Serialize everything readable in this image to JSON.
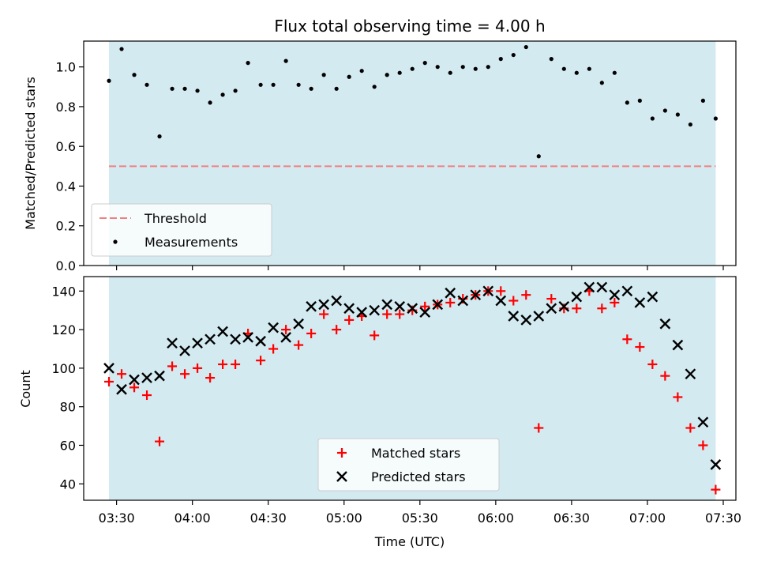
{
  "chart_data": [
    {
      "type": "scatter",
      "title": "Flux total observing time = 4.00 h",
      "xlabel": "",
      "ylabel": "Matched/Predicted stars",
      "ylim": [
        0,
        1.13
      ],
      "yticks": [
        "0.0",
        "0.2",
        "0.4",
        "0.6",
        "0.8",
        "1.0"
      ],
      "xlim": [
        "03:17",
        "07:35"
      ],
      "shaded_span": [
        "03:27",
        "07:27"
      ],
      "shade_color": "#d3eaf1",
      "threshold": {
        "name": "Threshold",
        "value": 0.5,
        "color": "#f08080",
        "style": "dashed"
      },
      "series": [
        {
          "name": "Measurements",
          "color": "#000000",
          "marker": "dot",
          "x": [
            "03:27",
            "03:32",
            "03:37",
            "03:42",
            "03:47",
            "03:52",
            "03:57",
            "04:02",
            "04:07",
            "04:12",
            "04:17",
            "04:22",
            "04:27",
            "04:32",
            "04:37",
            "04:42",
            "04:47",
            "04:52",
            "04:57",
            "05:02",
            "05:07",
            "05:12",
            "05:17",
            "05:22",
            "05:27",
            "05:32",
            "05:37",
            "05:42",
            "05:47",
            "05:52",
            "05:57",
            "06:02",
            "06:07",
            "06:12",
            "06:17",
            "06:22",
            "06:27",
            "06:32",
            "06:37",
            "06:42",
            "06:47",
            "06:52",
            "06:57",
            "07:02",
            "07:07",
            "07:12",
            "07:17",
            "07:22",
            "07:27"
          ],
          "y": [
            0.93,
            1.09,
            0.96,
            0.91,
            0.65,
            0.89,
            0.89,
            0.88,
            0.82,
            0.86,
            0.88,
            1.02,
            0.91,
            0.91,
            1.03,
            0.91,
            0.89,
            0.96,
            0.89,
            0.95,
            0.98,
            0.9,
            0.96,
            0.97,
            0.99,
            1.02,
            1.0,
            0.97,
            1.0,
            0.99,
            1.0,
            1.04,
            1.06,
            1.1,
            0.55,
            1.04,
            0.99,
            0.97,
            0.99,
            0.92,
            0.97,
            0.82,
            0.83,
            0.74,
            0.78,
            0.76,
            0.71,
            0.83,
            0.74
          ]
        }
      ],
      "legend": {
        "placement": "lower-left"
      }
    },
    {
      "type": "scatter",
      "title": "",
      "xlabel": "Time (UTC)",
      "ylabel": "Count",
      "ylim": [
        31.5,
        147.5
      ],
      "yticks": [
        "40",
        "60",
        "80",
        "100",
        "120",
        "140"
      ],
      "xlim": [
        "03:17",
        "07:35"
      ],
      "xticks": [
        "03:30",
        "04:00",
        "04:30",
        "05:00",
        "05:30",
        "06:00",
        "06:30",
        "07:00",
        "07:30"
      ],
      "shaded_span": [
        "03:27",
        "07:27"
      ],
      "shade_color": "#d3eaf1",
      "series": [
        {
          "name": "Matched stars",
          "color": "#ff0000",
          "marker": "plus",
          "x": [
            "03:27",
            "03:32",
            "03:37",
            "03:42",
            "03:47",
            "03:52",
            "03:57",
            "04:02",
            "04:07",
            "04:12",
            "04:17",
            "04:22",
            "04:27",
            "04:32",
            "04:37",
            "04:42",
            "04:47",
            "04:52",
            "04:57",
            "05:02",
            "05:07",
            "05:12",
            "05:17",
            "05:22",
            "05:27",
            "05:32",
            "05:37",
            "05:42",
            "05:47",
            "05:52",
            "05:57",
            "06:02",
            "06:07",
            "06:12",
            "06:17",
            "06:22",
            "06:27",
            "06:32",
            "06:37",
            "06:42",
            "06:47",
            "06:52",
            "06:57",
            "07:02",
            "07:07",
            "07:12",
            "07:17",
            "07:22",
            "07:27"
          ],
          "y": [
            93,
            97,
            90,
            86,
            62,
            101,
            97,
            100,
            95,
            102,
            102,
            118,
            104,
            110,
            120,
            112,
            118,
            128,
            120,
            125,
            127,
            117,
            128,
            128,
            130,
            132,
            133,
            134,
            136,
            138,
            140,
            140,
            135,
            138,
            69,
            136,
            131,
            131,
            140,
            131,
            134,
            115,
            111,
            102,
            96,
            85,
            69,
            60,
            37
          ]
        },
        {
          "name": "Predicted stars",
          "color": "#000000",
          "marker": "x",
          "x": [
            "03:27",
            "03:32",
            "03:37",
            "03:42",
            "03:47",
            "03:52",
            "03:57",
            "04:02",
            "04:07",
            "04:12",
            "04:17",
            "04:22",
            "04:27",
            "04:32",
            "04:37",
            "04:42",
            "04:47",
            "04:52",
            "04:57",
            "05:02",
            "05:07",
            "05:12",
            "05:17",
            "05:22",
            "05:27",
            "05:32",
            "05:37",
            "05:42",
            "05:47",
            "05:52",
            "05:57",
            "06:02",
            "06:07",
            "06:12",
            "06:17",
            "06:22",
            "06:27",
            "06:32",
            "06:37",
            "06:42",
            "06:47",
            "06:52",
            "06:57",
            "07:02",
            "07:07",
            "07:12",
            "07:17",
            "07:22",
            "07:27"
          ],
          "y": [
            100,
            89,
            94,
            95,
            96,
            113,
            109,
            113,
            115,
            119,
            115,
            116,
            114,
            121,
            116,
            123,
            132,
            133,
            135,
            131,
            129,
            130,
            133,
            132,
            131,
            129,
            133,
            139,
            135,
            138,
            140,
            135,
            127,
            125,
            127,
            131,
            132,
            137,
            142,
            142,
            138,
            140,
            134,
            137,
            123,
            112,
            97,
            72,
            50
          ]
        }
      ],
      "legend": {
        "placement": "lower-center"
      }
    }
  ]
}
